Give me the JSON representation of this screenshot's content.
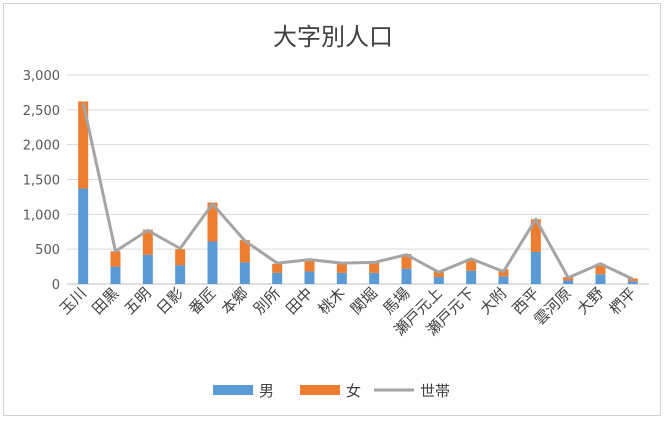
{
  "chart_data": {
    "type": "bar",
    "title": "大字別人口",
    "categories": [
      "玉川",
      "田黒",
      "五明",
      "日影",
      "番匠",
      "本郷",
      "別所",
      "田中",
      "桃木",
      "関堀",
      "馬場",
      "瀬戸元上",
      "瀬戸元下",
      "大附",
      "西平",
      "雲河原",
      "大野",
      "椚平"
    ],
    "series": [
      {
        "name": "男",
        "type": "bar",
        "stack": "pop",
        "color": "#5b9bd5",
        "values": [
          1370,
          250,
          420,
          270,
          610,
          310,
          160,
          180,
          160,
          160,
          220,
          100,
          190,
          110,
          460,
          50,
          140,
          40
        ]
      },
      {
        "name": "女",
        "type": "bar",
        "stack": "pop",
        "color": "#ed7d31",
        "values": [
          1250,
          220,
          360,
          230,
          560,
          320,
          130,
          170,
          140,
          150,
          210,
          90,
          170,
          100,
          470,
          50,
          150,
          40
        ]
      },
      {
        "name": "世帯",
        "type": "line",
        "color": "#a5a5a5",
        "values": [
          2600,
          470,
          770,
          510,
          1150,
          620,
          300,
          350,
          300,
          310,
          420,
          170,
          360,
          180,
          930,
          90,
          290,
          70
        ]
      }
    ],
    "ylim": [
      0,
      3000
    ],
    "yticks": [
      "0",
      "500",
      "1,000",
      "1,500",
      "2,000",
      "2,500",
      "3,000"
    ],
    "ytick_values": [
      0,
      500,
      1000,
      1500,
      2000,
      2500,
      3000
    ],
    "grid": true,
    "legend": "bottom"
  }
}
